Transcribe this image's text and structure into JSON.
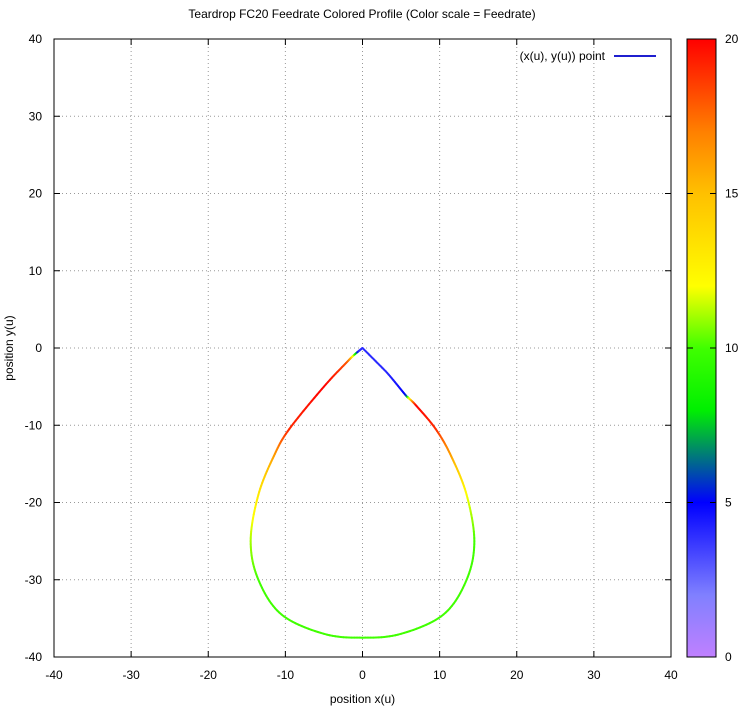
{
  "chart_data": {
    "type": "line",
    "title": "Teardrop FC20 Feedrate Colored Profile  (Color scale = Feedrate)",
    "xlabel": "position x(u)",
    "ylabel": "position y(u)",
    "xlim": [
      -40,
      40
    ],
    "ylim": [
      -40,
      40
    ],
    "xticks": [
      "-40",
      "-30",
      "-20",
      "-10",
      "0",
      "10",
      "20",
      "30",
      "40"
    ],
    "yticks": [
      "40",
      "30",
      "20",
      "10",
      "0",
      "-10",
      "-20",
      "-30",
      "-40"
    ],
    "grid": true,
    "legend": {
      "position": "top-right",
      "entries": [
        {
          "name": "(x(u), y(u)) point",
          "color": "#1f1fcf"
        }
      ]
    },
    "colorbar": {
      "label": "Feedrate",
      "range": [
        0,
        20
      ],
      "ticks": [
        "20",
        "15",
        "10",
        "5",
        "0"
      ],
      "stops": [
        {
          "value": 0,
          "color": "#c080ff"
        },
        {
          "value": 2,
          "color": "#8080ff"
        },
        {
          "value": 5,
          "color": "#0000ff"
        },
        {
          "value": 7,
          "color": "#00a050"
        },
        {
          "value": 8,
          "color": "#00f000"
        },
        {
          "value": 10,
          "color": "#40ff00"
        },
        {
          "value": 12,
          "color": "#ffff00"
        },
        {
          "value": 15,
          "color": "#ffc000"
        },
        {
          "value": 17,
          "color": "#ff8000"
        },
        {
          "value": 20,
          "color": "#ff0000"
        }
      ]
    },
    "series": [
      {
        "name": "(x(u), y(u)) point",
        "points": [
          {
            "x": 0,
            "y": 0,
            "f": 4
          },
          {
            "x": 3.0,
            "y": -3.0,
            "f": 4
          },
          {
            "x": 5.5,
            "y": -6.0,
            "f": 5
          },
          {
            "x": 6.0,
            "y": -6.5,
            "f": 11
          },
          {
            "x": 7.0,
            "y": -7.5,
            "f": 20
          },
          {
            "x": 9.5,
            "y": -10.5,
            "f": 19
          },
          {
            "x": 11.5,
            "y": -14.0,
            "f": 16
          },
          {
            "x": 13.5,
            "y": -19.0,
            "f": 12
          },
          {
            "x": 14.5,
            "y": -25.0,
            "f": 10
          },
          {
            "x": 13.5,
            "y": -30.0,
            "f": 10
          },
          {
            "x": 10.5,
            "y": -34.5,
            "f": 10
          },
          {
            "x": 5.0,
            "y": -37.0,
            "f": 10
          },
          {
            "x": 0,
            "y": -37.5,
            "f": 10
          },
          {
            "x": -5.0,
            "y": -37.0,
            "f": 10
          },
          {
            "x": -10.5,
            "y": -34.5,
            "f": 10
          },
          {
            "x": -13.5,
            "y": -30.0,
            "f": 10
          },
          {
            "x": -14.5,
            "y": -25.0,
            "f": 11
          },
          {
            "x": -13.5,
            "y": -19.0,
            "f": 13
          },
          {
            "x": -11.5,
            "y": -14.0,
            "f": 16
          },
          {
            "x": -9.5,
            "y": -10.5,
            "f": 19
          },
          {
            "x": -5.0,
            "y": -5.0,
            "f": 20
          },
          {
            "x": -2.0,
            "y": -1.8,
            "f": 18
          },
          {
            "x": -1.2,
            "y": -1.0,
            "f": 12
          },
          {
            "x": -0.5,
            "y": -0.4,
            "f": 4
          },
          {
            "x": 0,
            "y": 0,
            "f": 4
          }
        ]
      }
    ]
  }
}
